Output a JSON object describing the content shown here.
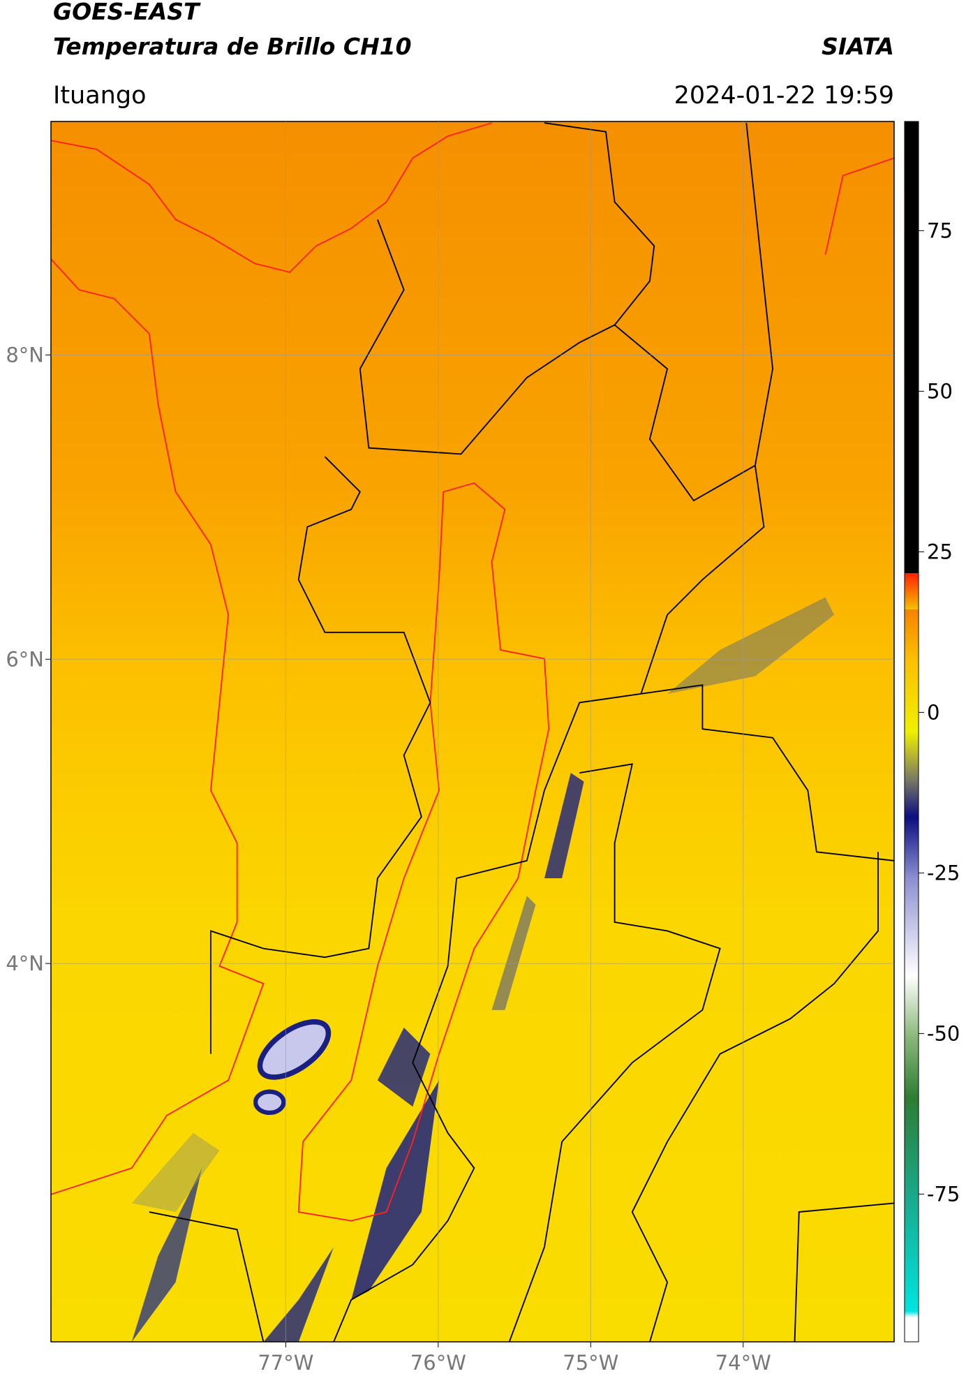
{
  "header": {
    "title_line1": "GOES-EAST",
    "title_line2": "Temperatura de Brillo CH10",
    "org": "SIATA",
    "location": "Ituango",
    "datetime": "2024-01-22 19:59"
  },
  "map": {
    "latlim": [
      1.513,
      9.535
    ],
    "lonlim": [
      -78.54,
      -73.01
    ],
    "lat_ticks": [
      {
        "value": 8,
        "label": "8°N"
      },
      {
        "value": 6,
        "label": "6°N"
      },
      {
        "value": 4,
        "label": "4°N"
      }
    ],
    "lon_ticks": [
      {
        "value": -77,
        "label": "77°W"
      },
      {
        "value": -76,
        "label": "76°W"
      },
      {
        "value": -75,
        "label": "75°W"
      },
      {
        "value": -74,
        "label": "74°W"
      }
    ]
  },
  "colorbar": {
    "lim": [
      -98,
      92
    ],
    "ticks": [
      75,
      50,
      25,
      0,
      -25,
      -50,
      -75
    ]
  }
}
